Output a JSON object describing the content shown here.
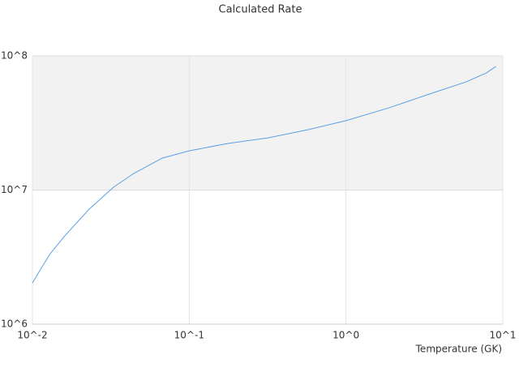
{
  "chart_data": {
    "type": "line",
    "title": "Calculated Rate",
    "x_label": "Temperature (GK)",
    "xscale": "log",
    "yscale": "log",
    "color": "#5aa0e6",
    "band_color": "#f2f2f2",
    "xlim": [
      0.01,
      10
    ],
    "ylim": [
      1000000,
      100000000
    ],
    "xticks": [
      {
        "value": 0.01,
        "label": "10^-2"
      },
      {
        "value": 0.1,
        "label": "10^-1"
      },
      {
        "value": 1,
        "label": "10^0"
      },
      {
        "value": 10,
        "label": "10^1"
      }
    ],
    "yticks": [
      {
        "value": 1000000,
        "label": "10^6"
      },
      {
        "value": 10000000,
        "label": "10^7"
      },
      {
        "value": 100000000,
        "label": "10^8"
      }
    ],
    "x": [
      0.01,
      0.0113,
      0.013,
      0.0161,
      0.023,
      0.0329,
      0.0443,
      0.0673,
      0.1,
      0.175,
      0.318,
      0.575,
      1,
      1.88,
      3.41,
      5.83,
      7.86,
      9.06
    ],
    "values": [
      2030000,
      2580000,
      3360000,
      4560000,
      7200000,
      10500000,
      13300000,
      17300000,
      19600000,
      22200000,
      24500000,
      28200000,
      32900000,
      41000000,
      52000000,
      64000000,
      74700000,
      83500000
    ]
  }
}
